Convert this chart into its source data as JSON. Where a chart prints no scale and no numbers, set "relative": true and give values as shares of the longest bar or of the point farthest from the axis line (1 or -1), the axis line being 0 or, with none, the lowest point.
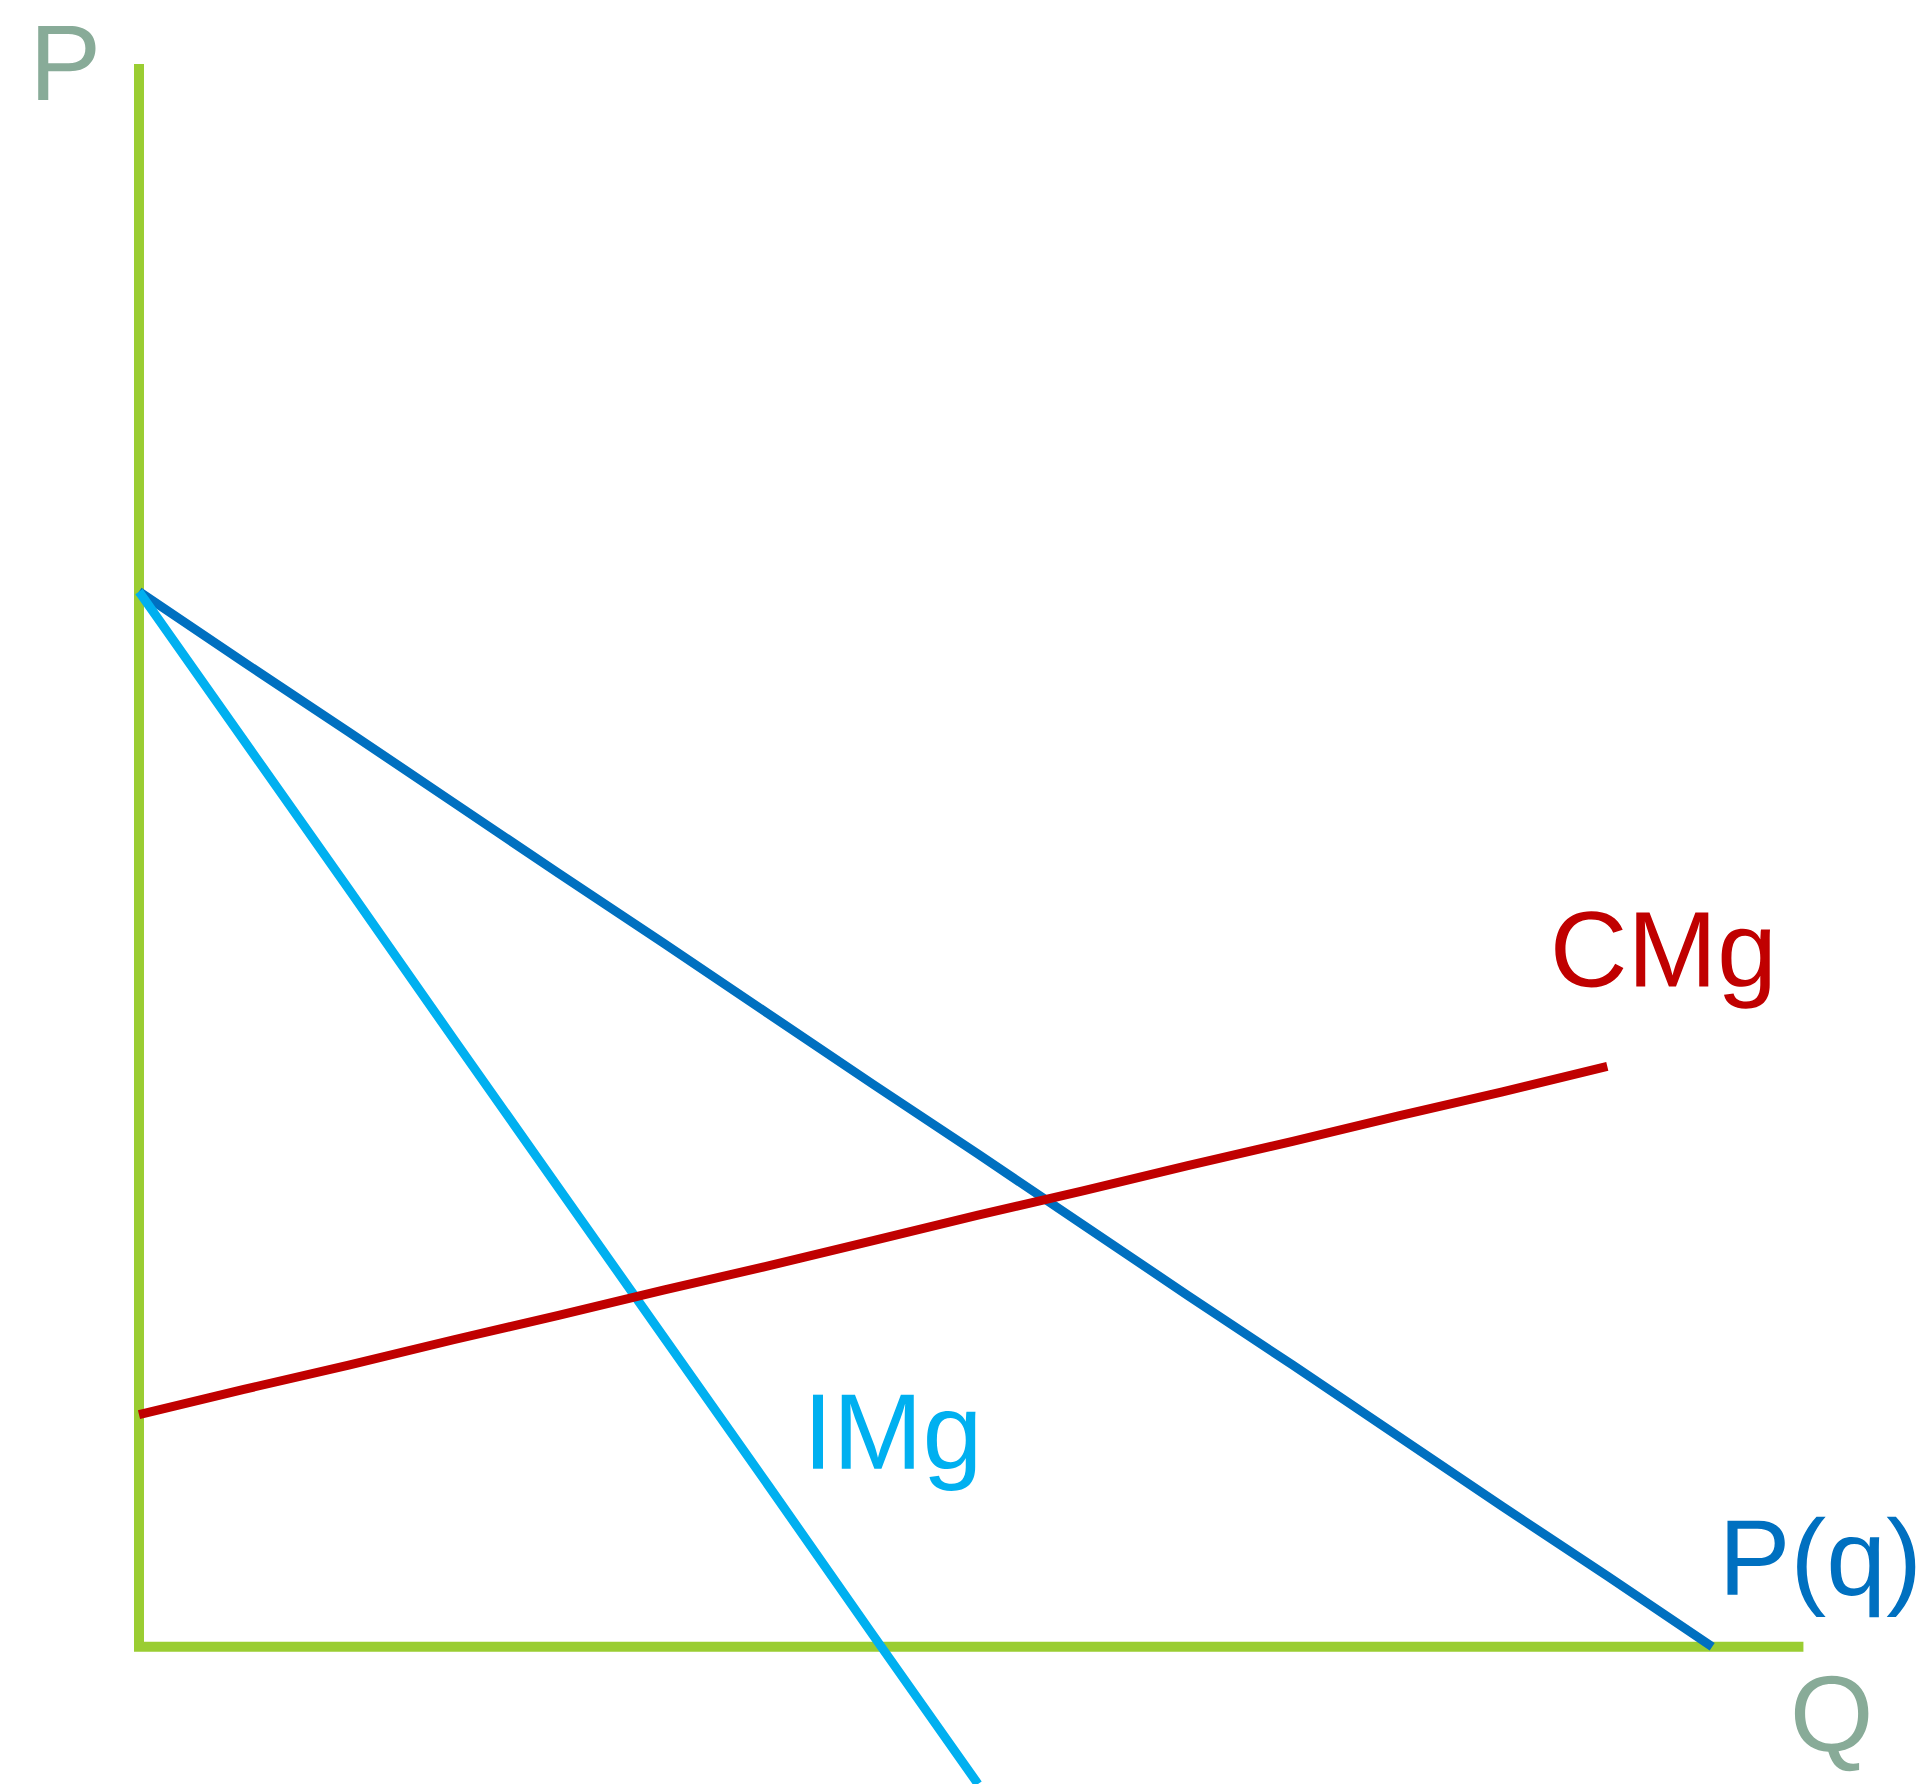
{
  "chart_data": {
    "type": "line",
    "relative": true,
    "xlabel": "Q",
    "ylabel": "P",
    "categories": [
      null,
      null,
      null,
      null,
      null,
      null,
      null,
      null,
      null,
      null,
      null,
      null,
      null,
      null,
      null,
      null
    ],
    "series": [
      {
        "name": "P(q)",
        "color": "#0070c0",
        "values": [
          1,
          0.933,
          0.867,
          0.8,
          0.733,
          0.667,
          0.6,
          0.533,
          0.467,
          0.4,
          0.333,
          0.267,
          0.2,
          0.133,
          0.067,
          0
        ]
      },
      {
        "name": "IMg",
        "color": "#00b0f0",
        "values": [
          1,
          0.859,
          0.718,
          0.576,
          0.435,
          0.294,
          0.153,
          0.011,
          -0.13,
          null,
          null,
          null,
          null,
          null,
          null,
          null
        ]
      },
      {
        "name": "CMg",
        "color": "#c00000",
        "values": [
          0.22,
          0.244,
          0.267,
          0.291,
          0.314,
          0.338,
          0.361,
          0.385,
          0.409,
          0.432,
          0.456,
          0.479,
          0.503,
          0.526,
          0.55,
          null
        ]
      }
    ],
    "ref_lines": [
      {
        "axis": "y",
        "value": 0,
        "color": "#9acd32"
      }
    ],
    "marker": "none",
    "line_style": "solid"
  }
}
